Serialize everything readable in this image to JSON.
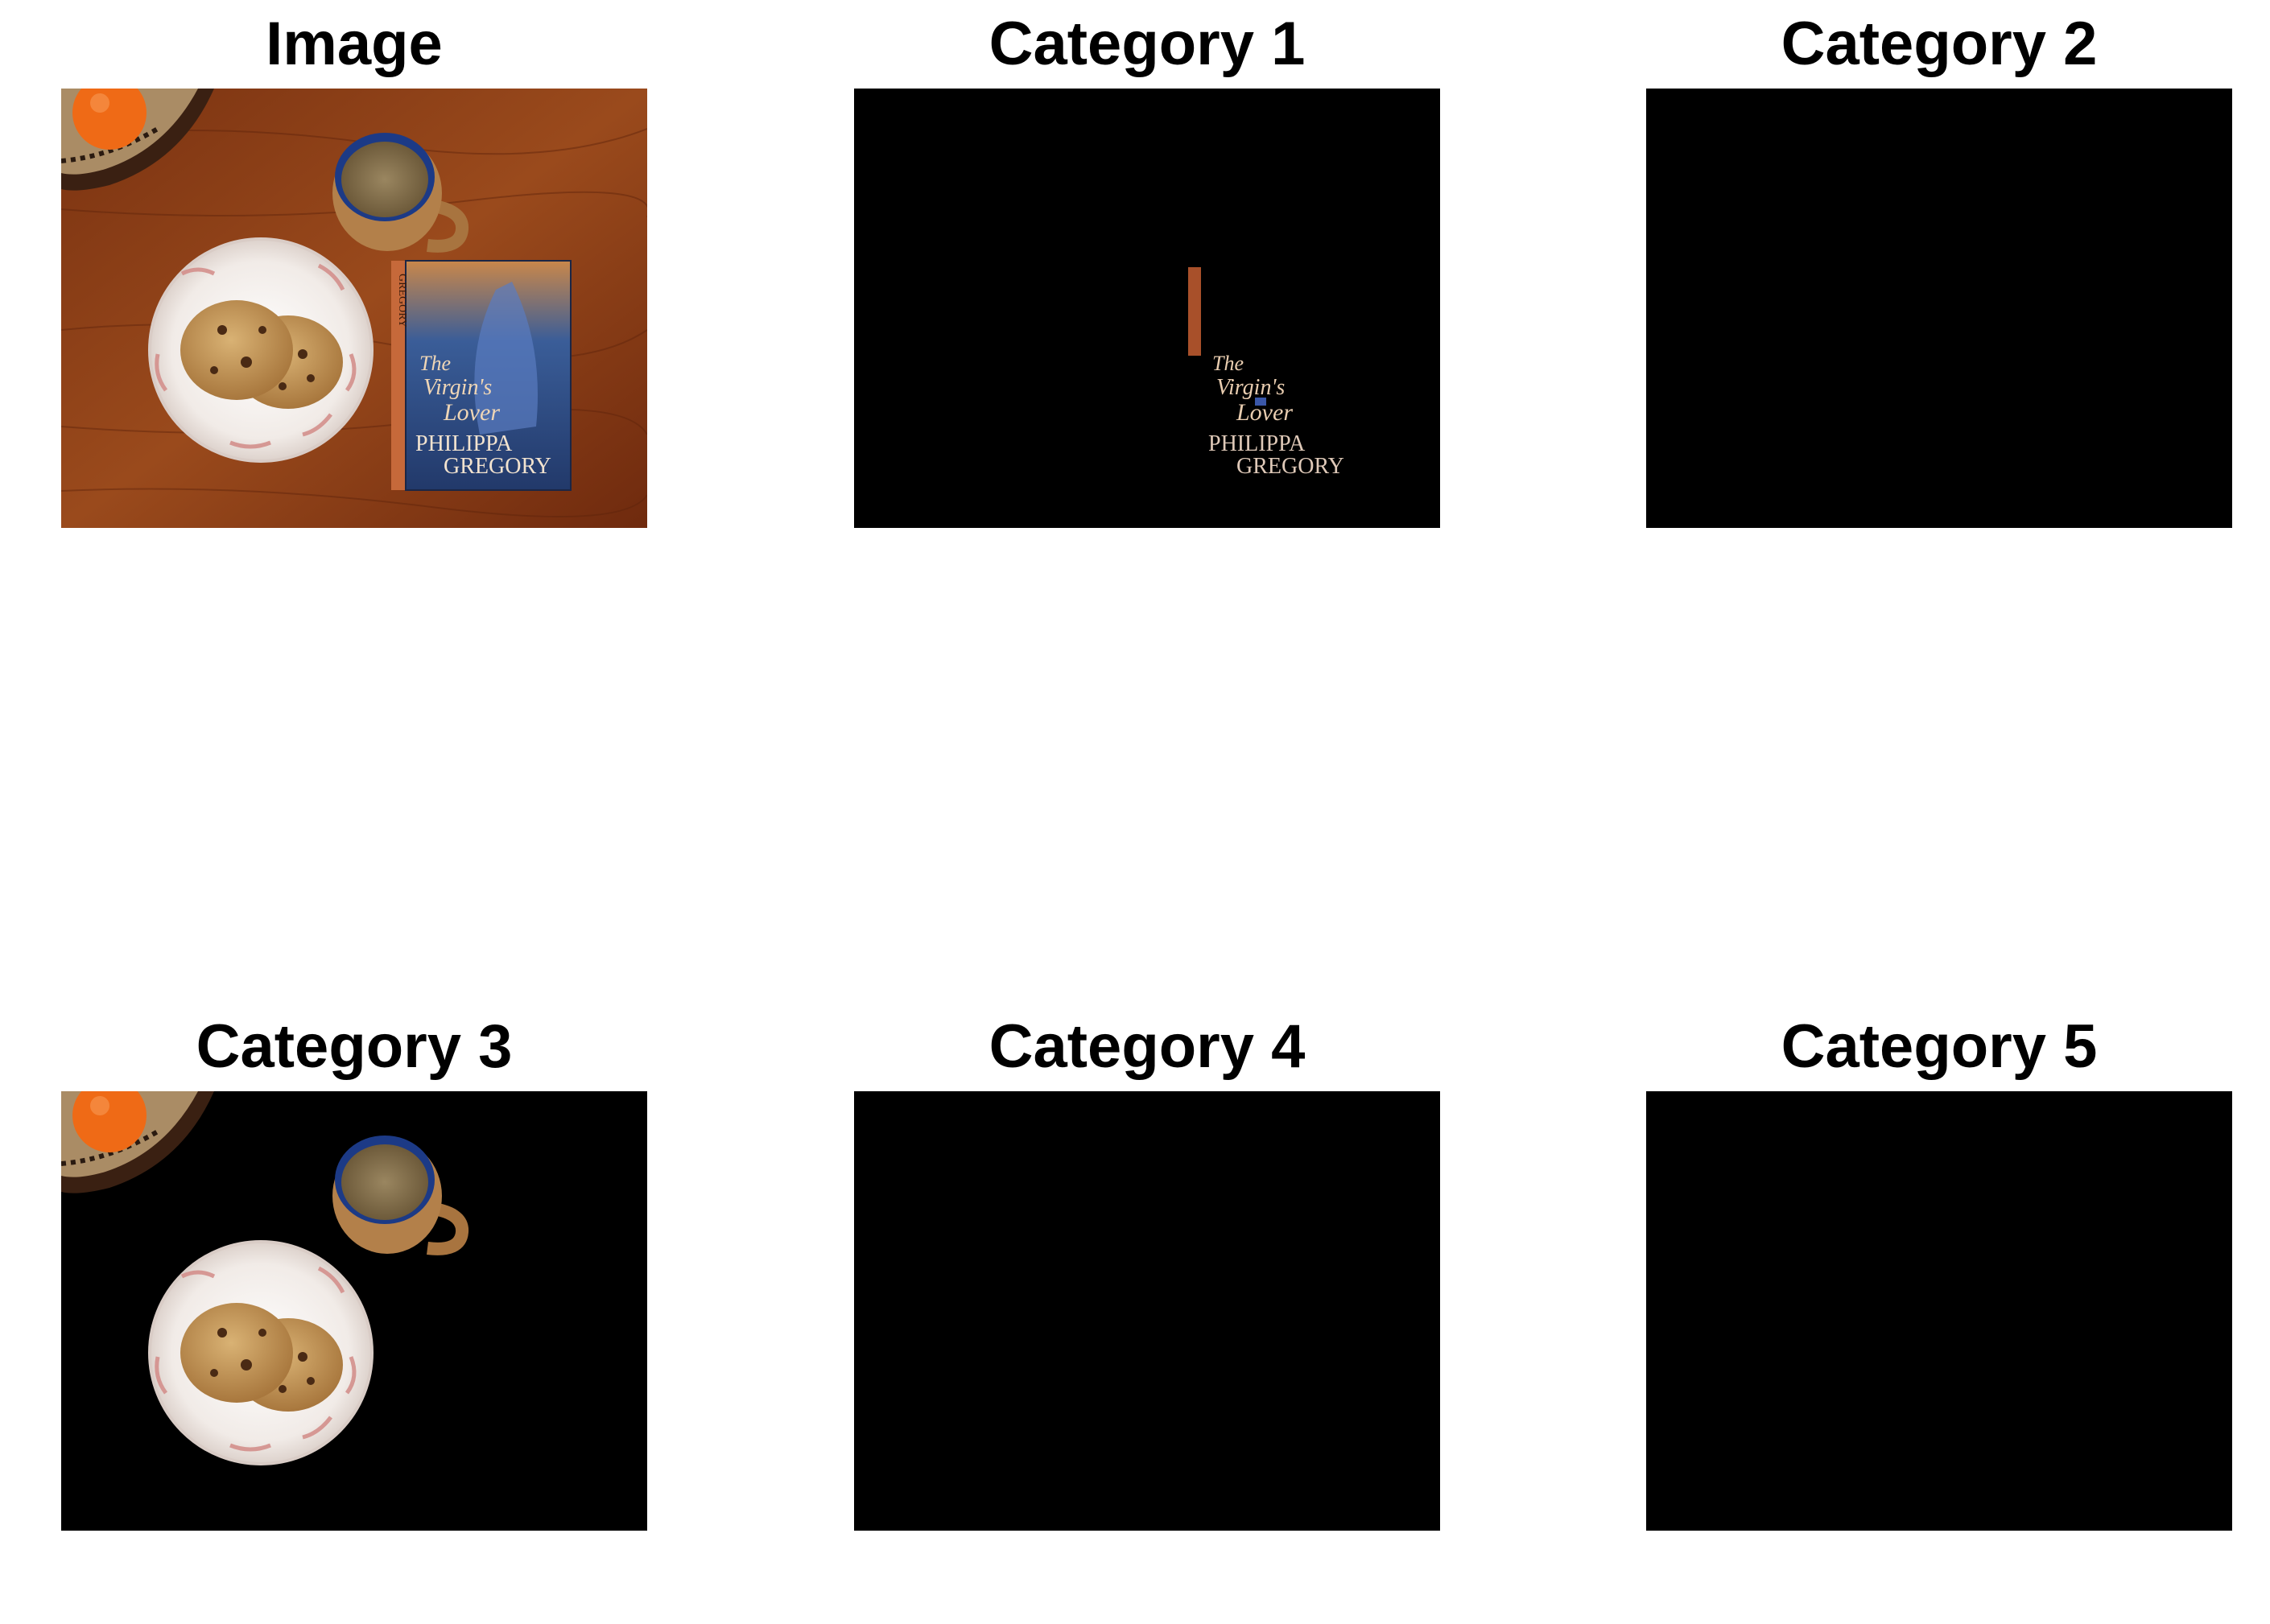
{
  "panels": [
    {
      "id": "image",
      "title": "Image"
    },
    {
      "id": "cat-1",
      "title": "Category 1"
    },
    {
      "id": "cat-2",
      "title": "Category 2"
    },
    {
      "id": "cat-3",
      "title": "Category 3"
    },
    {
      "id": "cat-4",
      "title": "Category 4"
    },
    {
      "id": "cat-5",
      "title": "Category 5"
    }
  ],
  "book": {
    "title_line1": "The",
    "title_line2": "Virgin's",
    "title_line3": "Lover",
    "author_line1": "PHILIPPA",
    "author_line2": "GREGORY",
    "spine_text": "GREGORY"
  },
  "colors": {
    "table": "#8a3d16",
    "mask_background": "#000000",
    "plate": "#f4efec",
    "cookie": "#c89a57",
    "mug": "#b3804a",
    "coffee": "#8f7a55",
    "book_cover": "#2c4f8c",
    "book_title": "#efd6b6",
    "orange": "#ef6a16"
  }
}
